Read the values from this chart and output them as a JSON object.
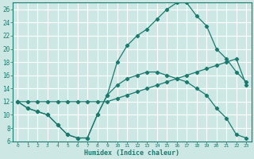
{
  "xlabel": "Humidex (Indice chaleur)",
  "bg_color": "#cde8e4",
  "grid_color": "#ffffff",
  "line_color": "#1a7a6e",
  "xlim": [
    -0.5,
    23.5
  ],
  "ylim": [
    6,
    27
  ],
  "xticks": [
    0,
    1,
    2,
    3,
    4,
    5,
    6,
    7,
    8,
    9,
    10,
    11,
    12,
    13,
    14,
    15,
    16,
    17,
    18,
    19,
    20,
    21,
    22,
    23
  ],
  "yticks": [
    6,
    8,
    10,
    12,
    14,
    16,
    18,
    20,
    22,
    24,
    26
  ],
  "line_top_x": [
    0,
    1,
    2,
    3,
    4,
    5,
    6,
    7,
    8,
    9,
    10,
    11,
    12,
    13,
    14,
    15,
    16,
    17,
    18,
    19,
    20,
    21,
    22,
    23
  ],
  "line_top_y": [
    12,
    11,
    10.5,
    10,
    8.5,
    7,
    6.5,
    6.5,
    10,
    13,
    18,
    20.5,
    22,
    23,
    24.5,
    26,
    27,
    27,
    25,
    23.5,
    20,
    18.5,
    16.5,
    15
  ],
  "line_mid_x": [
    0,
    1,
    2,
    3,
    4,
    5,
    6,
    7,
    8,
    9,
    10,
    11,
    12,
    13,
    14,
    15,
    16,
    17,
    18,
    19,
    20,
    21,
    22,
    23
  ],
  "line_mid_y": [
    12,
    12,
    12,
    12,
    12,
    12,
    12,
    12,
    12,
    12,
    12.5,
    13,
    13.5,
    14,
    14.5,
    15,
    15.5,
    16,
    16.5,
    17,
    17.5,
    18,
    18.5,
    14.5
  ],
  "line_bot_x": [
    0,
    1,
    2,
    3,
    4,
    5,
    6,
    7,
    8,
    9,
    10,
    11,
    12,
    13,
    14,
    15,
    16,
    17,
    18,
    19,
    20,
    21,
    22,
    23
  ],
  "line_bot_y": [
    12,
    11,
    10.5,
    10,
    8.5,
    7,
    6.5,
    6.5,
    10,
    13,
    14.5,
    15.5,
    16,
    16.5,
    16.5,
    16,
    15.5,
    15,
    14,
    13,
    11,
    9.5,
    7,
    6.5
  ]
}
